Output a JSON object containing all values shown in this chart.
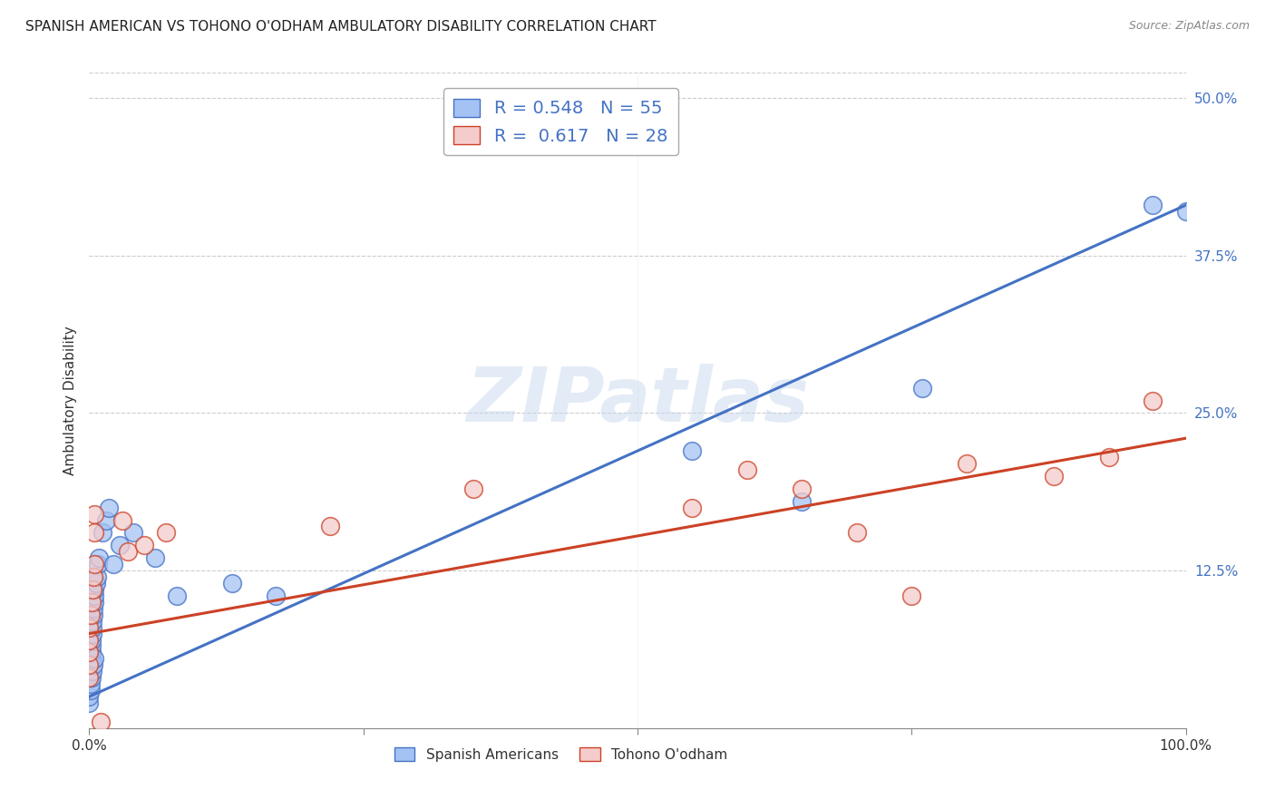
{
  "title": "SPANISH AMERICAN VS TOHONO O'ODHAM AMBULATORY DISABILITY CORRELATION CHART",
  "source": "Source: ZipAtlas.com",
  "ylabel": "Ambulatory Disability",
  "xlim": [
    0.0,
    1.0
  ],
  "ylim": [
    0.0,
    0.52
  ],
  "xticks": [
    0.0,
    0.25,
    0.5,
    0.75,
    1.0
  ],
  "xticklabels": [
    "0.0%",
    "",
    "",
    "",
    "100.0%"
  ],
  "ytick_positions": [
    0.125,
    0.25,
    0.375,
    0.5
  ],
  "ytick_labels": [
    "12.5%",
    "25.0%",
    "37.5%",
    "50.0%"
  ],
  "blue_fill": "#a4c2f4",
  "blue_edge": "#4472c4",
  "pink_fill": "#f4cccc",
  "pink_edge": "#cc4125",
  "blue_line_color": "#4472c4",
  "pink_line_color": "#cc4125",
  "watermark": "ZIPatlas",
  "legend_R_blue": "0.548",
  "legend_N_blue": "55",
  "legend_R_pink": "0.617",
  "legend_N_pink": "28",
  "blue_line_x": [
    0.0,
    1.0
  ],
  "blue_line_y": [
    0.025,
    0.415
  ],
  "pink_line_x": [
    0.0,
    1.0
  ],
  "pink_line_y": [
    0.075,
    0.23
  ],
  "blue_scatter_x": [
    0.0,
    0.0,
    0.0,
    0.0,
    0.0,
    0.0,
    0.0,
    0.0,
    0.0,
    0.0,
    0.001,
    0.001,
    0.001,
    0.001,
    0.001,
    0.001,
    0.002,
    0.002,
    0.002,
    0.002,
    0.003,
    0.003,
    0.003,
    0.004,
    0.004,
    0.005,
    0.005,
    0.005,
    0.006,
    0.007,
    0.008,
    0.009,
    0.012,
    0.015,
    0.018,
    0.022,
    0.028,
    0.04,
    0.06,
    0.08,
    0.13,
    0.17,
    0.55,
    0.65,
    0.76,
    0.97,
    1.0,
    0.0,
    0.0,
    0.001,
    0.001,
    0.002,
    0.003,
    0.004,
    0.005
  ],
  "blue_scatter_y": [
    0.04,
    0.04,
    0.05,
    0.05,
    0.06,
    0.065,
    0.07,
    0.075,
    0.08,
    0.085,
    0.09,
    0.09,
    0.095,
    0.1,
    0.105,
    0.11,
    0.055,
    0.06,
    0.065,
    0.07,
    0.075,
    0.08,
    0.085,
    0.09,
    0.095,
    0.1,
    0.105,
    0.11,
    0.115,
    0.12,
    0.13,
    0.135,
    0.155,
    0.165,
    0.175,
    0.13,
    0.145,
    0.155,
    0.135,
    0.105,
    0.115,
    0.105,
    0.22,
    0.18,
    0.27,
    0.415,
    0.41,
    0.02,
    0.025,
    0.03,
    0.035,
    0.04,
    0.045,
    0.05,
    0.055
  ],
  "pink_scatter_x": [
    0.0,
    0.0,
    0.0,
    0.0,
    0.0,
    0.001,
    0.002,
    0.003,
    0.004,
    0.005,
    0.005,
    0.03,
    0.035,
    0.05,
    0.07,
    0.22,
    0.35,
    0.55,
    0.6,
    0.65,
    0.7,
    0.75,
    0.8,
    0.88,
    0.93,
    0.97,
    0.005,
    0.01
  ],
  "pink_scatter_y": [
    0.04,
    0.05,
    0.06,
    0.07,
    0.08,
    0.09,
    0.1,
    0.11,
    0.12,
    0.13,
    0.155,
    0.165,
    0.14,
    0.145,
    0.155,
    0.16,
    0.19,
    0.175,
    0.205,
    0.19,
    0.155,
    0.105,
    0.21,
    0.2,
    0.215,
    0.26,
    0.17,
    0.005
  ]
}
